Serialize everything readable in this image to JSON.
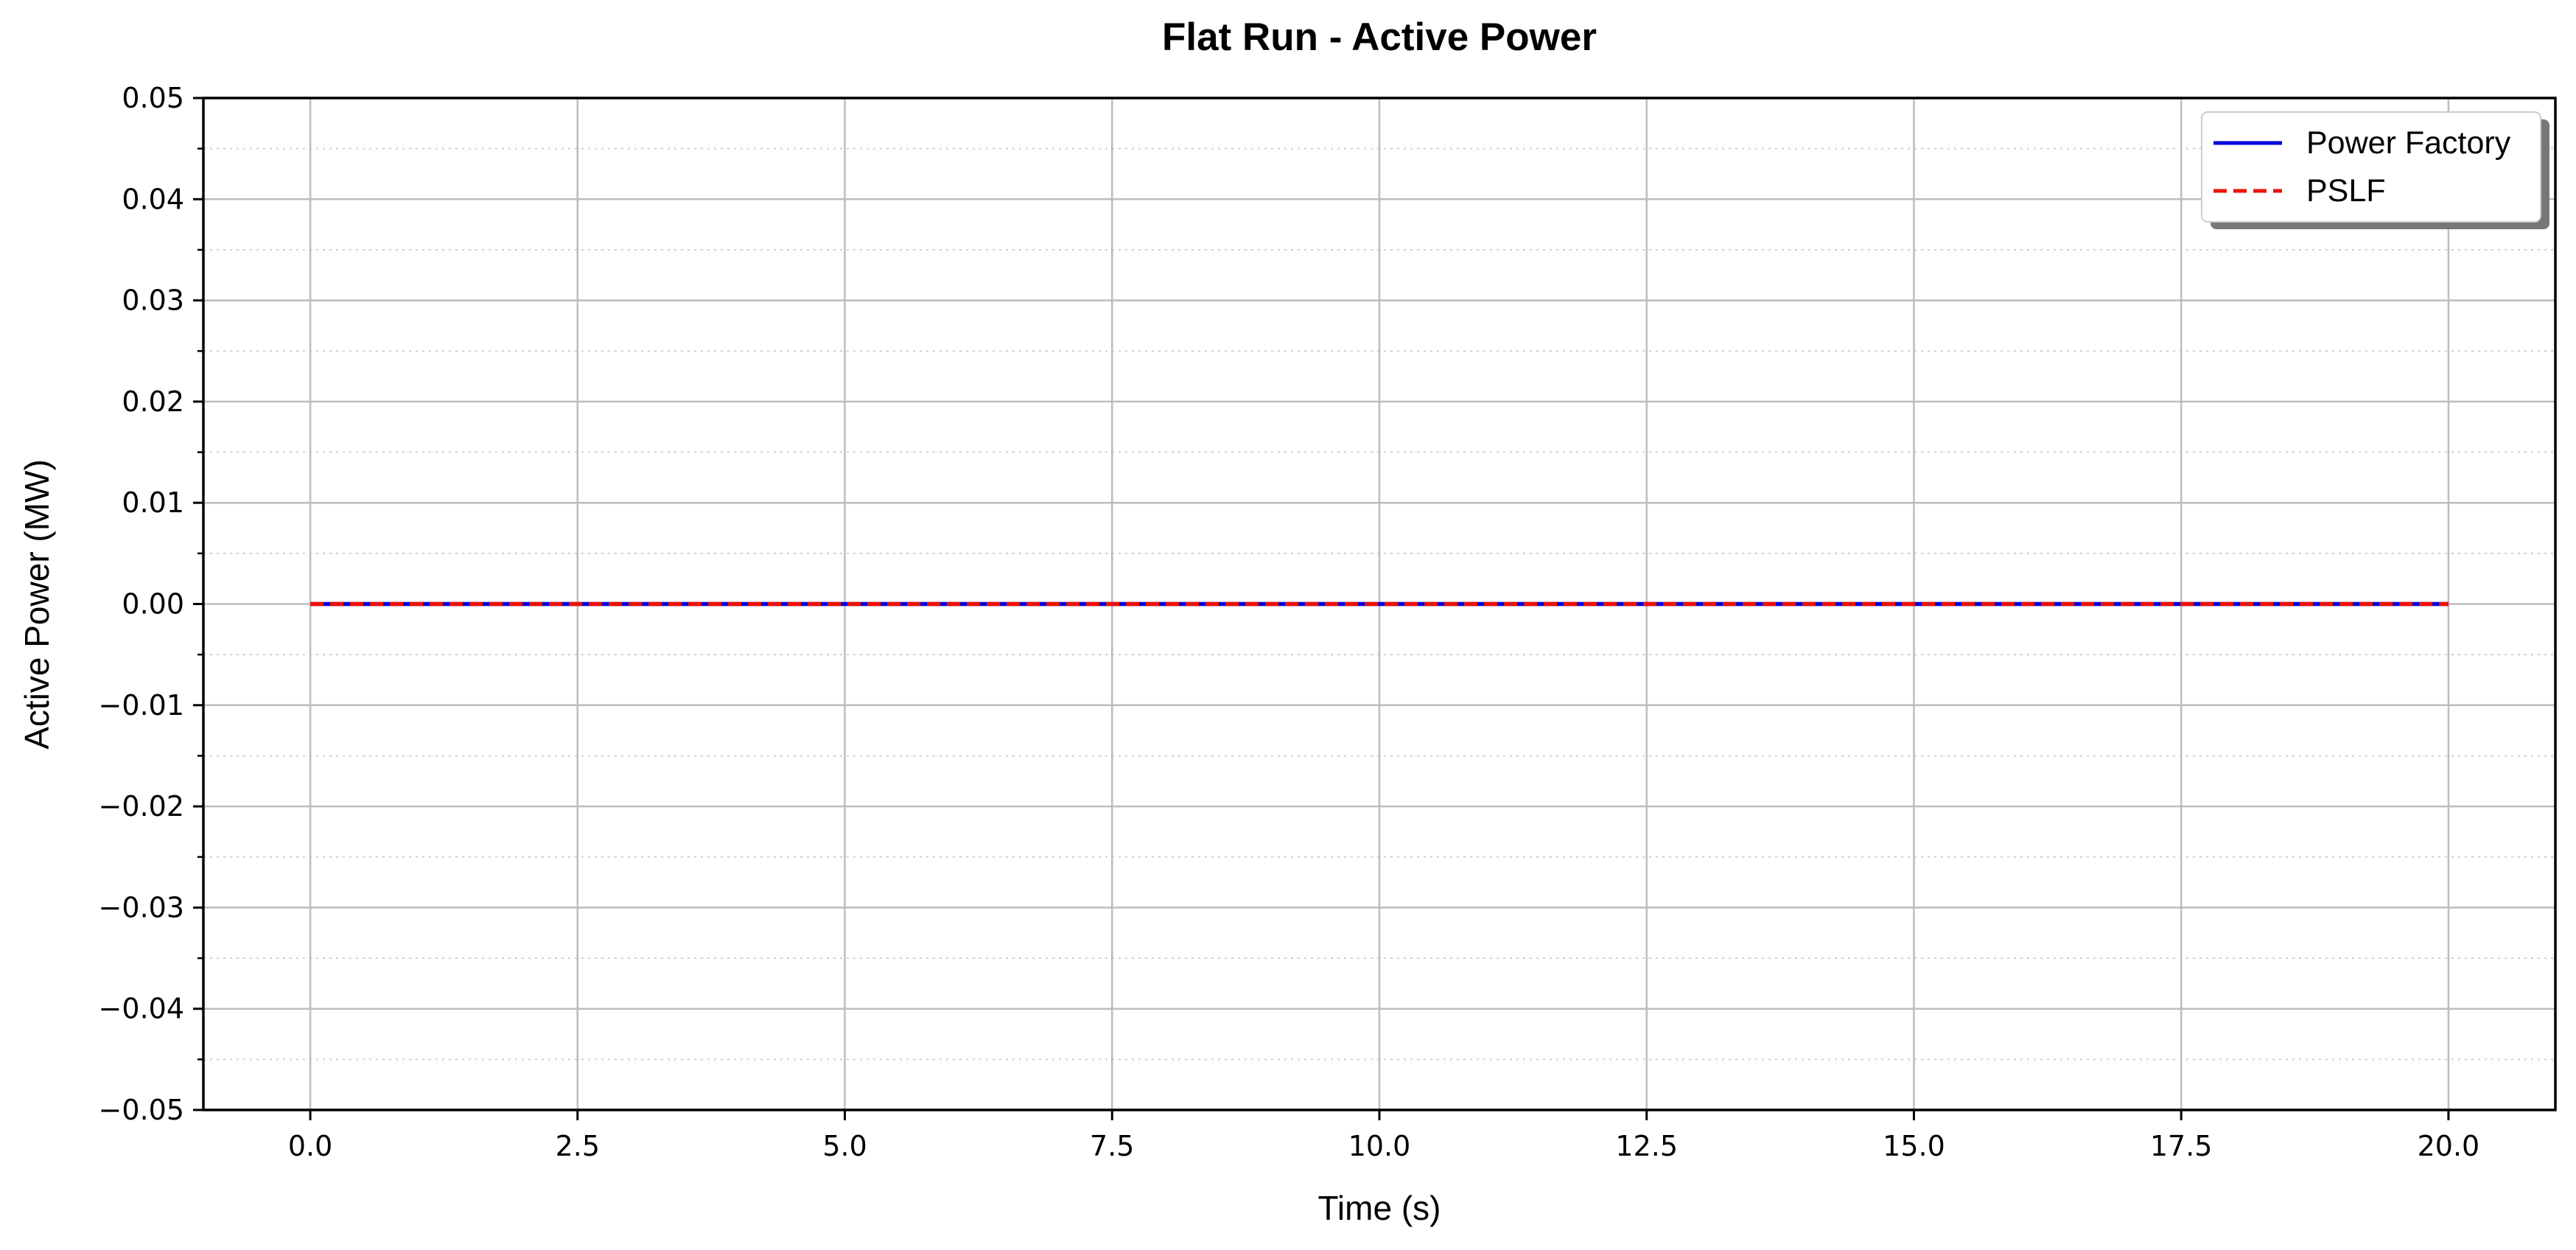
{
  "chart_data": {
    "type": "line",
    "title": "Flat Run - Active Power",
    "xlabel": "Time (s)",
    "ylabel": "Active Power (MW)",
    "xlim": [
      -1.0,
      21.0
    ],
    "ylim": [
      -0.05,
      0.05
    ],
    "x_ticks": [
      0.0,
      2.5,
      5.0,
      7.5,
      10.0,
      12.5,
      15.0,
      17.5,
      20.0
    ],
    "x_tick_labels": [
      "0.0",
      "2.5",
      "5.0",
      "7.5",
      "10.0",
      "12.5",
      "15.0",
      "17.5",
      "20.0"
    ],
    "y_ticks": [
      -0.05,
      -0.04,
      -0.03,
      -0.02,
      -0.01,
      0.0,
      0.01,
      0.02,
      0.03,
      0.04,
      0.05
    ],
    "y_tick_labels": [
      "−0.05",
      "−0.04",
      "−0.03",
      "−0.02",
      "−0.01",
      "0.00",
      "0.01",
      "0.02",
      "0.03",
      "0.04",
      "0.05"
    ],
    "y_minor_ticks": [
      -0.045,
      -0.035,
      -0.025,
      -0.015,
      -0.005,
      0.005,
      0.015,
      0.025,
      0.035,
      0.045
    ],
    "grid": "major solid, minor dotted",
    "legend_position": "top-right",
    "series": [
      {
        "name": "Power Factory",
        "color": "#0000dd",
        "style": "solid",
        "x": [
          0.0,
          20.0
        ],
        "y": [
          0.0,
          0.0
        ]
      },
      {
        "name": "PSLF",
        "color": "#ee1100",
        "style": "dashed",
        "x": [
          0.0,
          20.0
        ],
        "y": [
          0.0,
          0.0
        ]
      }
    ]
  }
}
